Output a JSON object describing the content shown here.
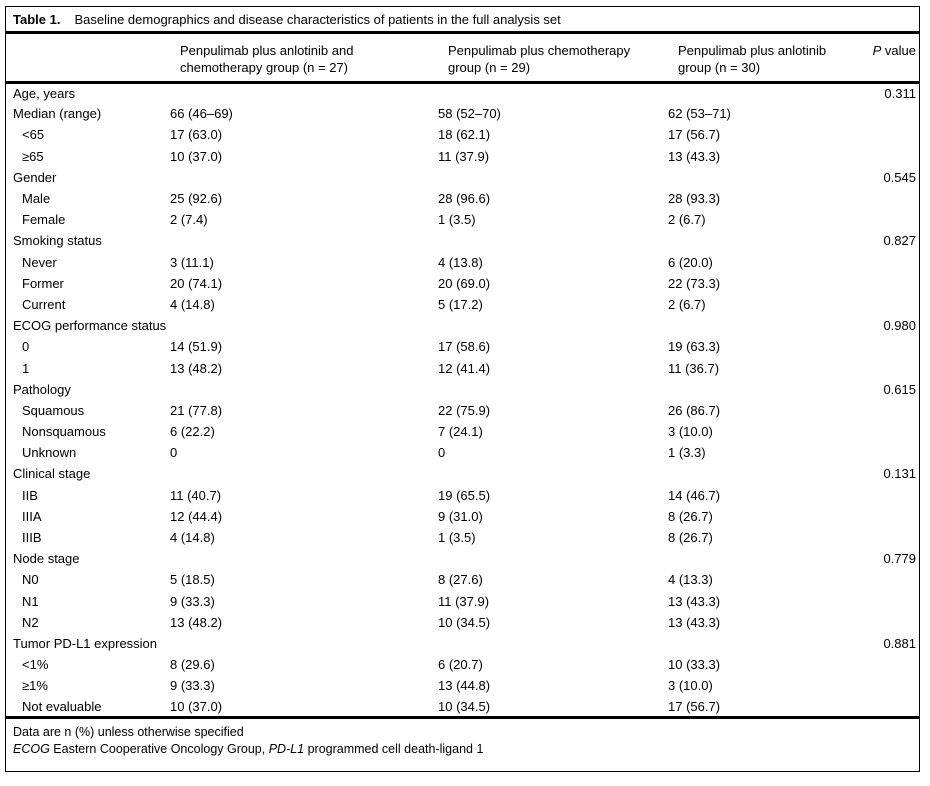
{
  "table": {
    "label": "Table 1.",
    "title": "Baseline demographics and disease characteristics of patients in the full analysis set",
    "columns": [
      {
        "label": "Penpulimab plus anlotinib and chemotherapy group (n = 27)"
      },
      {
        "label": "Penpulimab plus chemotherapy group (n = 29)"
      },
      {
        "label": "Penpulimab plus anlotinib group (n = 30)"
      }
    ],
    "p_value_header": [
      {
        "text": "P",
        "italic": true
      },
      {
        "text": " value",
        "italic": false
      }
    ],
    "rows": [
      {
        "label": "Age, years",
        "indent": false,
        "values": [
          "",
          "",
          ""
        ],
        "p": "0.311"
      },
      {
        "label": "Median (range)",
        "indent": false,
        "values": [
          "66 (46–69)",
          "58 (52–70)",
          "62 (53–71)"
        ],
        "p": ""
      },
      {
        "label": "<65",
        "indent": true,
        "values": [
          "17 (63.0)",
          "18 (62.1)",
          "17 (56.7)"
        ],
        "p": ""
      },
      {
        "label": "≥65",
        "indent": true,
        "values": [
          "10 (37.0)",
          "11 (37.9)",
          "13 (43.3)"
        ],
        "p": ""
      },
      {
        "label": "Gender",
        "indent": false,
        "values": [
          "",
          "",
          ""
        ],
        "p": "0.545"
      },
      {
        "label": "Male",
        "indent": true,
        "values": [
          "25 (92.6)",
          "28 (96.6)",
          "28 (93.3)"
        ],
        "p": ""
      },
      {
        "label": "Female",
        "indent": true,
        "values": [
          "2 (7.4)",
          "1 (3.5)",
          "2 (6.7)"
        ],
        "p": ""
      },
      {
        "label": "Smoking status",
        "indent": false,
        "values": [
          "",
          "",
          ""
        ],
        "p": "0.827"
      },
      {
        "label": "Never",
        "indent": true,
        "values": [
          "3 (11.1)",
          "4 (13.8)",
          "6 (20.0)"
        ],
        "p": ""
      },
      {
        "label": "Former",
        "indent": true,
        "values": [
          "20 (74.1)",
          "20 (69.0)",
          "22 (73.3)"
        ],
        "p": ""
      },
      {
        "label": "Current",
        "indent": true,
        "values": [
          "4 (14.8)",
          "5 (17.2)",
          "2 (6.7)"
        ],
        "p": ""
      },
      {
        "label": "ECOG performance status",
        "indent": false,
        "values": [
          "",
          "",
          ""
        ],
        "p": "0.980"
      },
      {
        "label": "0",
        "indent": true,
        "values": [
          "14 (51.9)",
          "17 (58.6)",
          "19 (63.3)"
        ],
        "p": ""
      },
      {
        "label": "1",
        "indent": true,
        "values": [
          "13 (48.2)",
          "12 (41.4)",
          "11 (36.7)"
        ],
        "p": ""
      },
      {
        "label": "Pathology",
        "indent": false,
        "values": [
          "",
          "",
          ""
        ],
        "p": "0.615"
      },
      {
        "label": "Squamous",
        "indent": true,
        "values": [
          "21 (77.8)",
          "22 (75.9)",
          "26 (86.7)"
        ],
        "p": ""
      },
      {
        "label": "Nonsquamous",
        "indent": true,
        "values": [
          "6 (22.2)",
          "7 (24.1)",
          "3 (10.0)"
        ],
        "p": ""
      },
      {
        "label": "Unknown",
        "indent": true,
        "values": [
          "0",
          "0",
          "1 (3.3)"
        ],
        "p": ""
      },
      {
        "label": "Clinical stage",
        "indent": false,
        "values": [
          "",
          "",
          ""
        ],
        "p": "0.131"
      },
      {
        "label": "IIB",
        "indent": true,
        "values": [
          "11 (40.7)",
          "19 (65.5)",
          "14 (46.7)"
        ],
        "p": ""
      },
      {
        "label": "IIIA",
        "indent": true,
        "values": [
          "12 (44.4)",
          "9 (31.0)",
          "8 (26.7)"
        ],
        "p": ""
      },
      {
        "label": "IIIB",
        "indent": true,
        "values": [
          "4 (14.8)",
          "1 (3.5)",
          "8 (26.7)"
        ],
        "p": ""
      },
      {
        "label": "Node stage",
        "indent": false,
        "values": [
          "",
          "",
          ""
        ],
        "p": "0.779"
      },
      {
        "label": "N0",
        "indent": true,
        "values": [
          "5 (18.5)",
          "8 (27.6)",
          "4 (13.3)"
        ],
        "p": ""
      },
      {
        "label": "N1",
        "indent": true,
        "values": [
          "9 (33.3)",
          "11 (37.9)",
          "13 (43.3)"
        ],
        "p": ""
      },
      {
        "label": "N2",
        "indent": true,
        "values": [
          "13 (48.2)",
          "10 (34.5)",
          "13 (43.3)"
        ],
        "p": ""
      },
      {
        "label": "Tumor PD-L1 expression",
        "indent": false,
        "values": [
          "",
          "",
          ""
        ],
        "p": "0.881"
      },
      {
        "label": "<1%",
        "indent": true,
        "values": [
          "8 (29.6)",
          "6 (20.7)",
          "10 (33.3)"
        ],
        "p": ""
      },
      {
        "label": "≥1%",
        "indent": true,
        "values": [
          "9 (33.3)",
          "13 (44.8)",
          "3 (10.0)"
        ],
        "p": ""
      },
      {
        "label": "Not evaluable",
        "indent": true,
        "values": [
          "10 (37.0)",
          "10 (34.5)",
          "17 (56.7)"
        ],
        "p": ""
      }
    ],
    "footnotes": [
      [
        {
          "text": "Data are n (%) unless otherwise specified",
          "italic": false
        }
      ],
      [
        {
          "text": "ECOG",
          "italic": true
        },
        {
          "text": " Eastern Cooperative Oncology Group, ",
          "italic": false
        },
        {
          "text": "PD-L1",
          "italic": true
        },
        {
          "text": " programmed cell death-ligand 1",
          "italic": false
        }
      ]
    ]
  }
}
